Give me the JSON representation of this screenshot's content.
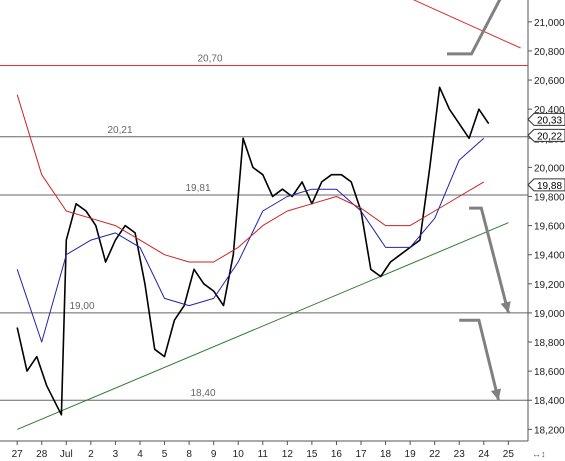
{
  "chart_data": {
    "type": "line",
    "title": "",
    "xlabel": "",
    "ylabel": "",
    "ylim": [
      18.1,
      21.15
    ],
    "y_ticks": [
      "21,000",
      "20,800",
      "20,600",
      "20,400",
      "20,200",
      "20,000",
      "19,800",
      "19,600",
      "19,400",
      "19,200",
      "19,000",
      "18,800",
      "18,600",
      "18,400",
      "18,200"
    ],
    "y_tick_values": [
      21.0,
      20.8,
      20.6,
      20.4,
      20.2,
      20.0,
      19.8,
      19.6,
      19.4,
      19.2,
      19.0,
      18.8,
      18.6,
      18.4,
      18.2
    ],
    "x_ticks": [
      "27",
      "28",
      "Jul",
      "2",
      "3",
      "4",
      "5",
      "8",
      "9",
      "10",
      "11",
      "12",
      "15",
      "16",
      "17",
      "18",
      "19",
      "22",
      "23",
      "24",
      "25"
    ],
    "levels": [
      {
        "label": "20,70",
        "value": 20.7,
        "color": "#dd3333"
      },
      {
        "label": "20,21",
        "value": 20.21,
        "color": "#666666"
      },
      {
        "label": "19,81",
        "value": 19.81,
        "color": "#666666"
      },
      {
        "label": "19,00",
        "value": 19.0,
        "color": "#666666"
      },
      {
        "label": "18,40",
        "value": 18.4,
        "color": "#666666"
      }
    ],
    "price_tags": [
      {
        "label": "20,33",
        "value": 20.33
      },
      {
        "label": "20,22",
        "value": 20.22
      },
      {
        "label": "19,88",
        "value": 19.88
      }
    ],
    "series": [
      {
        "role": "price",
        "color": "#000000",
        "x": [
          0.0,
          0.4,
          0.8,
          1.2,
          1.5,
          1.8,
          2.0,
          2.4,
          2.8,
          3.2,
          3.6,
          4.0,
          4.4,
          4.8,
          5.2,
          5.6,
          6.0,
          6.4,
          6.8,
          7.2,
          7.6,
          8.0,
          8.4,
          8.8,
          9.2,
          9.6,
          10.0,
          10.4,
          10.8,
          11.2,
          11.6,
          12.0,
          12.4,
          12.8,
          13.2,
          13.6,
          14.0,
          14.4,
          14.8,
          15.2,
          15.6,
          16.0,
          16.4,
          16.8,
          17.2,
          17.6,
          18.0,
          18.4,
          18.8,
          19.2
        ],
        "values": [
          18.9,
          18.6,
          18.7,
          18.5,
          18.4,
          18.3,
          19.5,
          19.75,
          19.7,
          19.6,
          19.35,
          19.5,
          19.6,
          19.55,
          19.2,
          18.75,
          18.7,
          18.95,
          19.05,
          19.3,
          19.2,
          19.15,
          19.05,
          19.4,
          20.2,
          20.0,
          19.95,
          19.8,
          19.85,
          19.8,
          19.9,
          19.75,
          19.9,
          19.95,
          19.95,
          19.9,
          19.7,
          19.3,
          19.25,
          19.35,
          19.4,
          19.45,
          19.5,
          20.0,
          20.55,
          20.4,
          20.3,
          20.2,
          20.4,
          20.3
        ]
      },
      {
        "role": "moving-average-short",
        "color": "#2222aa",
        "x": [
          0,
          1,
          2,
          3,
          4,
          5,
          6,
          7,
          8,
          9,
          10,
          11,
          12,
          13,
          14,
          15,
          16,
          17,
          18,
          19
        ],
        "values": [
          19.3,
          18.8,
          19.4,
          19.5,
          19.55,
          19.45,
          19.1,
          19.05,
          19.1,
          19.35,
          19.7,
          19.8,
          19.85,
          19.85,
          19.7,
          19.45,
          19.45,
          19.65,
          20.05,
          20.2
        ]
      },
      {
        "role": "moving-average-long",
        "color": "#cc2222",
        "x": [
          0,
          1,
          2,
          3,
          4,
          5,
          6,
          7,
          8,
          9,
          10,
          11,
          12,
          13,
          14,
          15,
          16,
          17,
          18,
          19
        ],
        "values": [
          20.5,
          19.95,
          19.7,
          19.65,
          19.6,
          19.5,
          19.4,
          19.35,
          19.35,
          19.45,
          19.6,
          19.7,
          19.75,
          19.8,
          19.72,
          19.6,
          19.6,
          19.7,
          19.8,
          19.9
        ]
      },
      {
        "role": "trendline-support",
        "color": "#2e7d2e",
        "x": [
          0.0,
          20.0
        ],
        "values": [
          18.2,
          19.62
        ]
      },
      {
        "role": "trendline-resistance",
        "color": "#dd3333",
        "x": [
          15.5,
          20.5
        ],
        "values": [
          21.2,
          20.82
        ]
      }
    ],
    "projections": [
      {
        "color": "#808080",
        "x": [
          17.5,
          18.5,
          19.8
        ],
        "values": [
          20.78,
          20.78,
          21.2
        ]
      },
      {
        "color": "#808080",
        "x": [
          18.4,
          18.9,
          20.0
        ],
        "values": [
          19.72,
          19.72,
          19.0
        ]
      },
      {
        "color": "#808080",
        "x": [
          18.0,
          18.8,
          19.6
        ],
        "values": [
          18.95,
          18.95,
          18.4
        ]
      }
    ],
    "grid": false,
    "legend": "none"
  }
}
